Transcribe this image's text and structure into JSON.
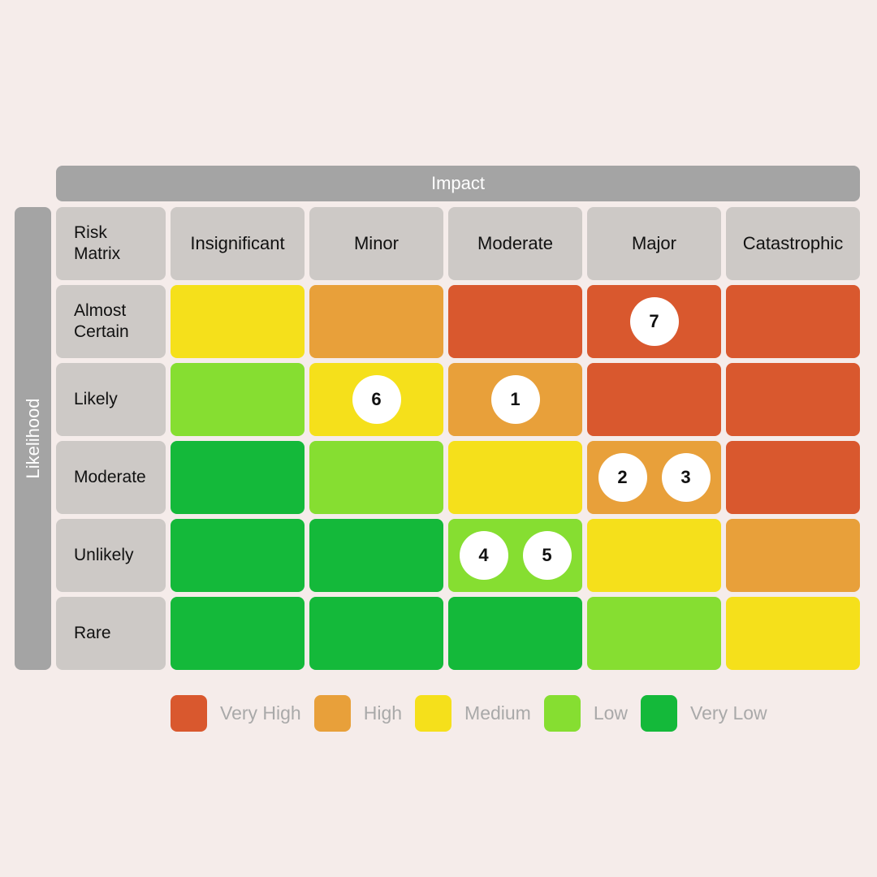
{
  "axes": {
    "impact_label": "Impact",
    "likelihood_label": "Likelihood",
    "corner_label": "Risk\nMatrix"
  },
  "columns": [
    "Insignificant",
    "Minor",
    "Moderate",
    "Major",
    "Catastrophic"
  ],
  "rows": [
    {
      "label": "Almost\nCertain",
      "levels": [
        "medium",
        "high",
        "very_high",
        "very_high",
        "very_high"
      ],
      "badges": [
        [],
        [],
        [],
        [
          "7"
        ],
        []
      ]
    },
    {
      "label": "Likely",
      "levels": [
        "low",
        "medium",
        "high",
        "very_high",
        "very_high"
      ],
      "badges": [
        [],
        [
          "6"
        ],
        [
          "1"
        ],
        [],
        []
      ]
    },
    {
      "label": "Moderate",
      "levels": [
        "very_low",
        "low",
        "medium",
        "high",
        "very_high"
      ],
      "badges": [
        [],
        [],
        [],
        [
          "2",
          "3"
        ],
        []
      ]
    },
    {
      "label": "Unlikely",
      "levels": [
        "very_low",
        "very_low",
        "low",
        "medium",
        "high"
      ],
      "badges": [
        [],
        [],
        [
          "4",
          "5"
        ],
        [],
        []
      ]
    },
    {
      "label": "Rare",
      "levels": [
        "very_low",
        "very_low",
        "very_low",
        "low",
        "medium"
      ],
      "badges": [
        [],
        [],
        [],
        [],
        []
      ]
    }
  ],
  "colors": {
    "very_high": "#d9582e",
    "high": "#e8a03a",
    "medium": "#f5e01b",
    "low": "#86de31",
    "very_low": "#14b93a"
  },
  "legend": [
    {
      "key": "very_high",
      "label": "Very High"
    },
    {
      "key": "high",
      "label": "High"
    },
    {
      "key": "medium",
      "label": "Medium"
    },
    {
      "key": "low",
      "label": "Low"
    },
    {
      "key": "very_low",
      "label": "Very Low"
    }
  ]
}
